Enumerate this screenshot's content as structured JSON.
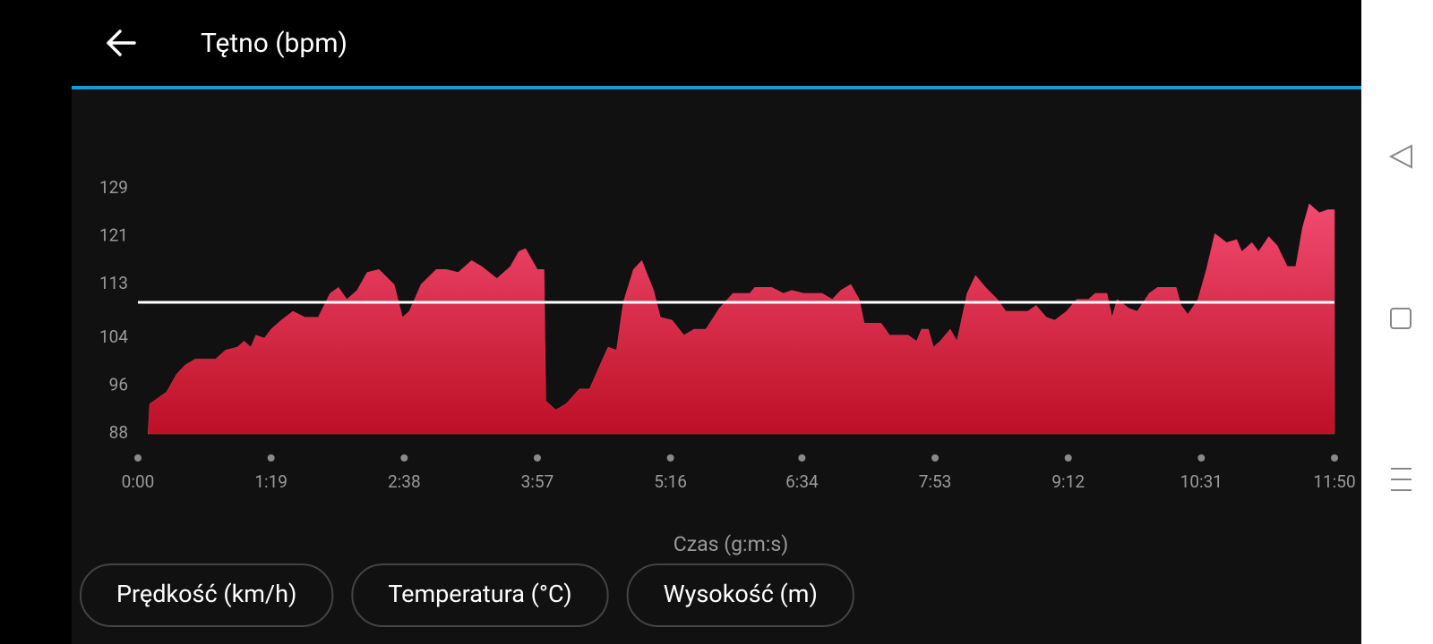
{
  "chart_data": {
    "type": "area",
    "title": "Tętno (bpm)",
    "x_label": "Czas (g:m:s)",
    "color": "#e8385a",
    "x": [
      6,
      7,
      12,
      17,
      23,
      28,
      34,
      46,
      52,
      59,
      63,
      67,
      70,
      75,
      79,
      85,
      92,
      99,
      107,
      114,
      119,
      124,
      130,
      136,
      143,
      152,
      157,
      161,
      168,
      177,
      183,
      190,
      198,
      204,
      213,
      221,
      226,
      230,
      237,
      241,
      242,
      248,
      254,
      262,
      268,
      275,
      279,
      284,
      288,
      294,
      299,
      306,
      310,
      317,
      324,
      330,
      337,
      345,
      353,
      363,
      366,
      376,
      383,
      388,
      395,
      406,
      412,
      417,
      423,
      428,
      431,
      441,
      446,
      457,
      462,
      465,
      469,
      472,
      476,
      482,
      486,
      492,
      497,
      503,
      510,
      515,
      528,
      533,
      539,
      544,
      551,
      557,
      564,
      568,
      575,
      578,
      581,
      588,
      593,
      600,
      605,
      616,
      619,
      623,
      629,
      634,
      639,
      646,
      652,
      655,
      661,
      665,
      671,
      676,
      682,
      687,
      691,
      695,
      701,
      706,
      710
    ],
    "values": [
      88,
      93,
      94,
      95,
      98,
      99.5,
      100.5,
      100.5,
      102,
      102.5,
      103.5,
      102.5,
      104.5,
      104,
      105.5,
      107,
      108.5,
      107.5,
      107.5,
      111.5,
      112.5,
      110.5,
      112,
      115,
      115.5,
      113,
      107.5,
      108.5,
      113,
      115.5,
      115.5,
      115,
      117,
      116,
      114,
      116,
      118.5,
      119,
      115.5,
      115.5,
      93.5,
      92,
      93,
      95.5,
      95.5,
      100,
      102.5,
      102,
      110,
      115.5,
      117,
      112,
      107.5,
      107,
      104.5,
      105.5,
      105.5,
      109,
      111.5,
      111.5,
      112.5,
      112.5,
      111.5,
      112,
      111.5,
      111.5,
      110.5,
      112,
      113,
      110.5,
      106.5,
      106.5,
      104.5,
      104.5,
      103.5,
      105.5,
      105.5,
      102.5,
      103.5,
      105.5,
      103.5,
      111.5,
      114.5,
      112.5,
      110.5,
      108.5,
      108.5,
      109.5,
      107.5,
      107,
      108.5,
      110.5,
      110.5,
      111.5,
      111.5,
      107.5,
      110.5,
      109,
      108.5,
      111.5,
      112.5,
      112.5,
      109.5,
      108,
      110.5,
      115.5,
      121.5,
      120,
      120.5,
      118.5,
      120,
      118.5,
      121,
      119.5,
      116,
      116,
      122.5,
      126.5,
      125,
      125.5,
      125.5
    ],
    "reference_line": 110,
    "xlim": [
      0,
      710
    ],
    "xticks": [
      {
        "value": 0,
        "label": "0:00"
      },
      {
        "value": 79,
        "label": "1:19"
      },
      {
        "value": 158,
        "label": "2:38"
      },
      {
        "value": 237,
        "label": "3:57"
      },
      {
        "value": 316,
        "label": "5:16"
      },
      {
        "value": 394,
        "label": "6:34"
      },
      {
        "value": 473,
        "label": "7:53"
      },
      {
        "value": 552,
        "label": "9:12"
      },
      {
        "value": 631,
        "label": "10:31"
      },
      {
        "value": 710,
        "label": "11:50"
      }
    ],
    "ylim": [
      88,
      129
    ],
    "yticks": [
      88,
      96,
      104,
      113,
      121,
      129
    ]
  },
  "buttons": [
    "Prędkość (km/h)",
    "Temperatura (°C)",
    "Wysokość (m)"
  ]
}
